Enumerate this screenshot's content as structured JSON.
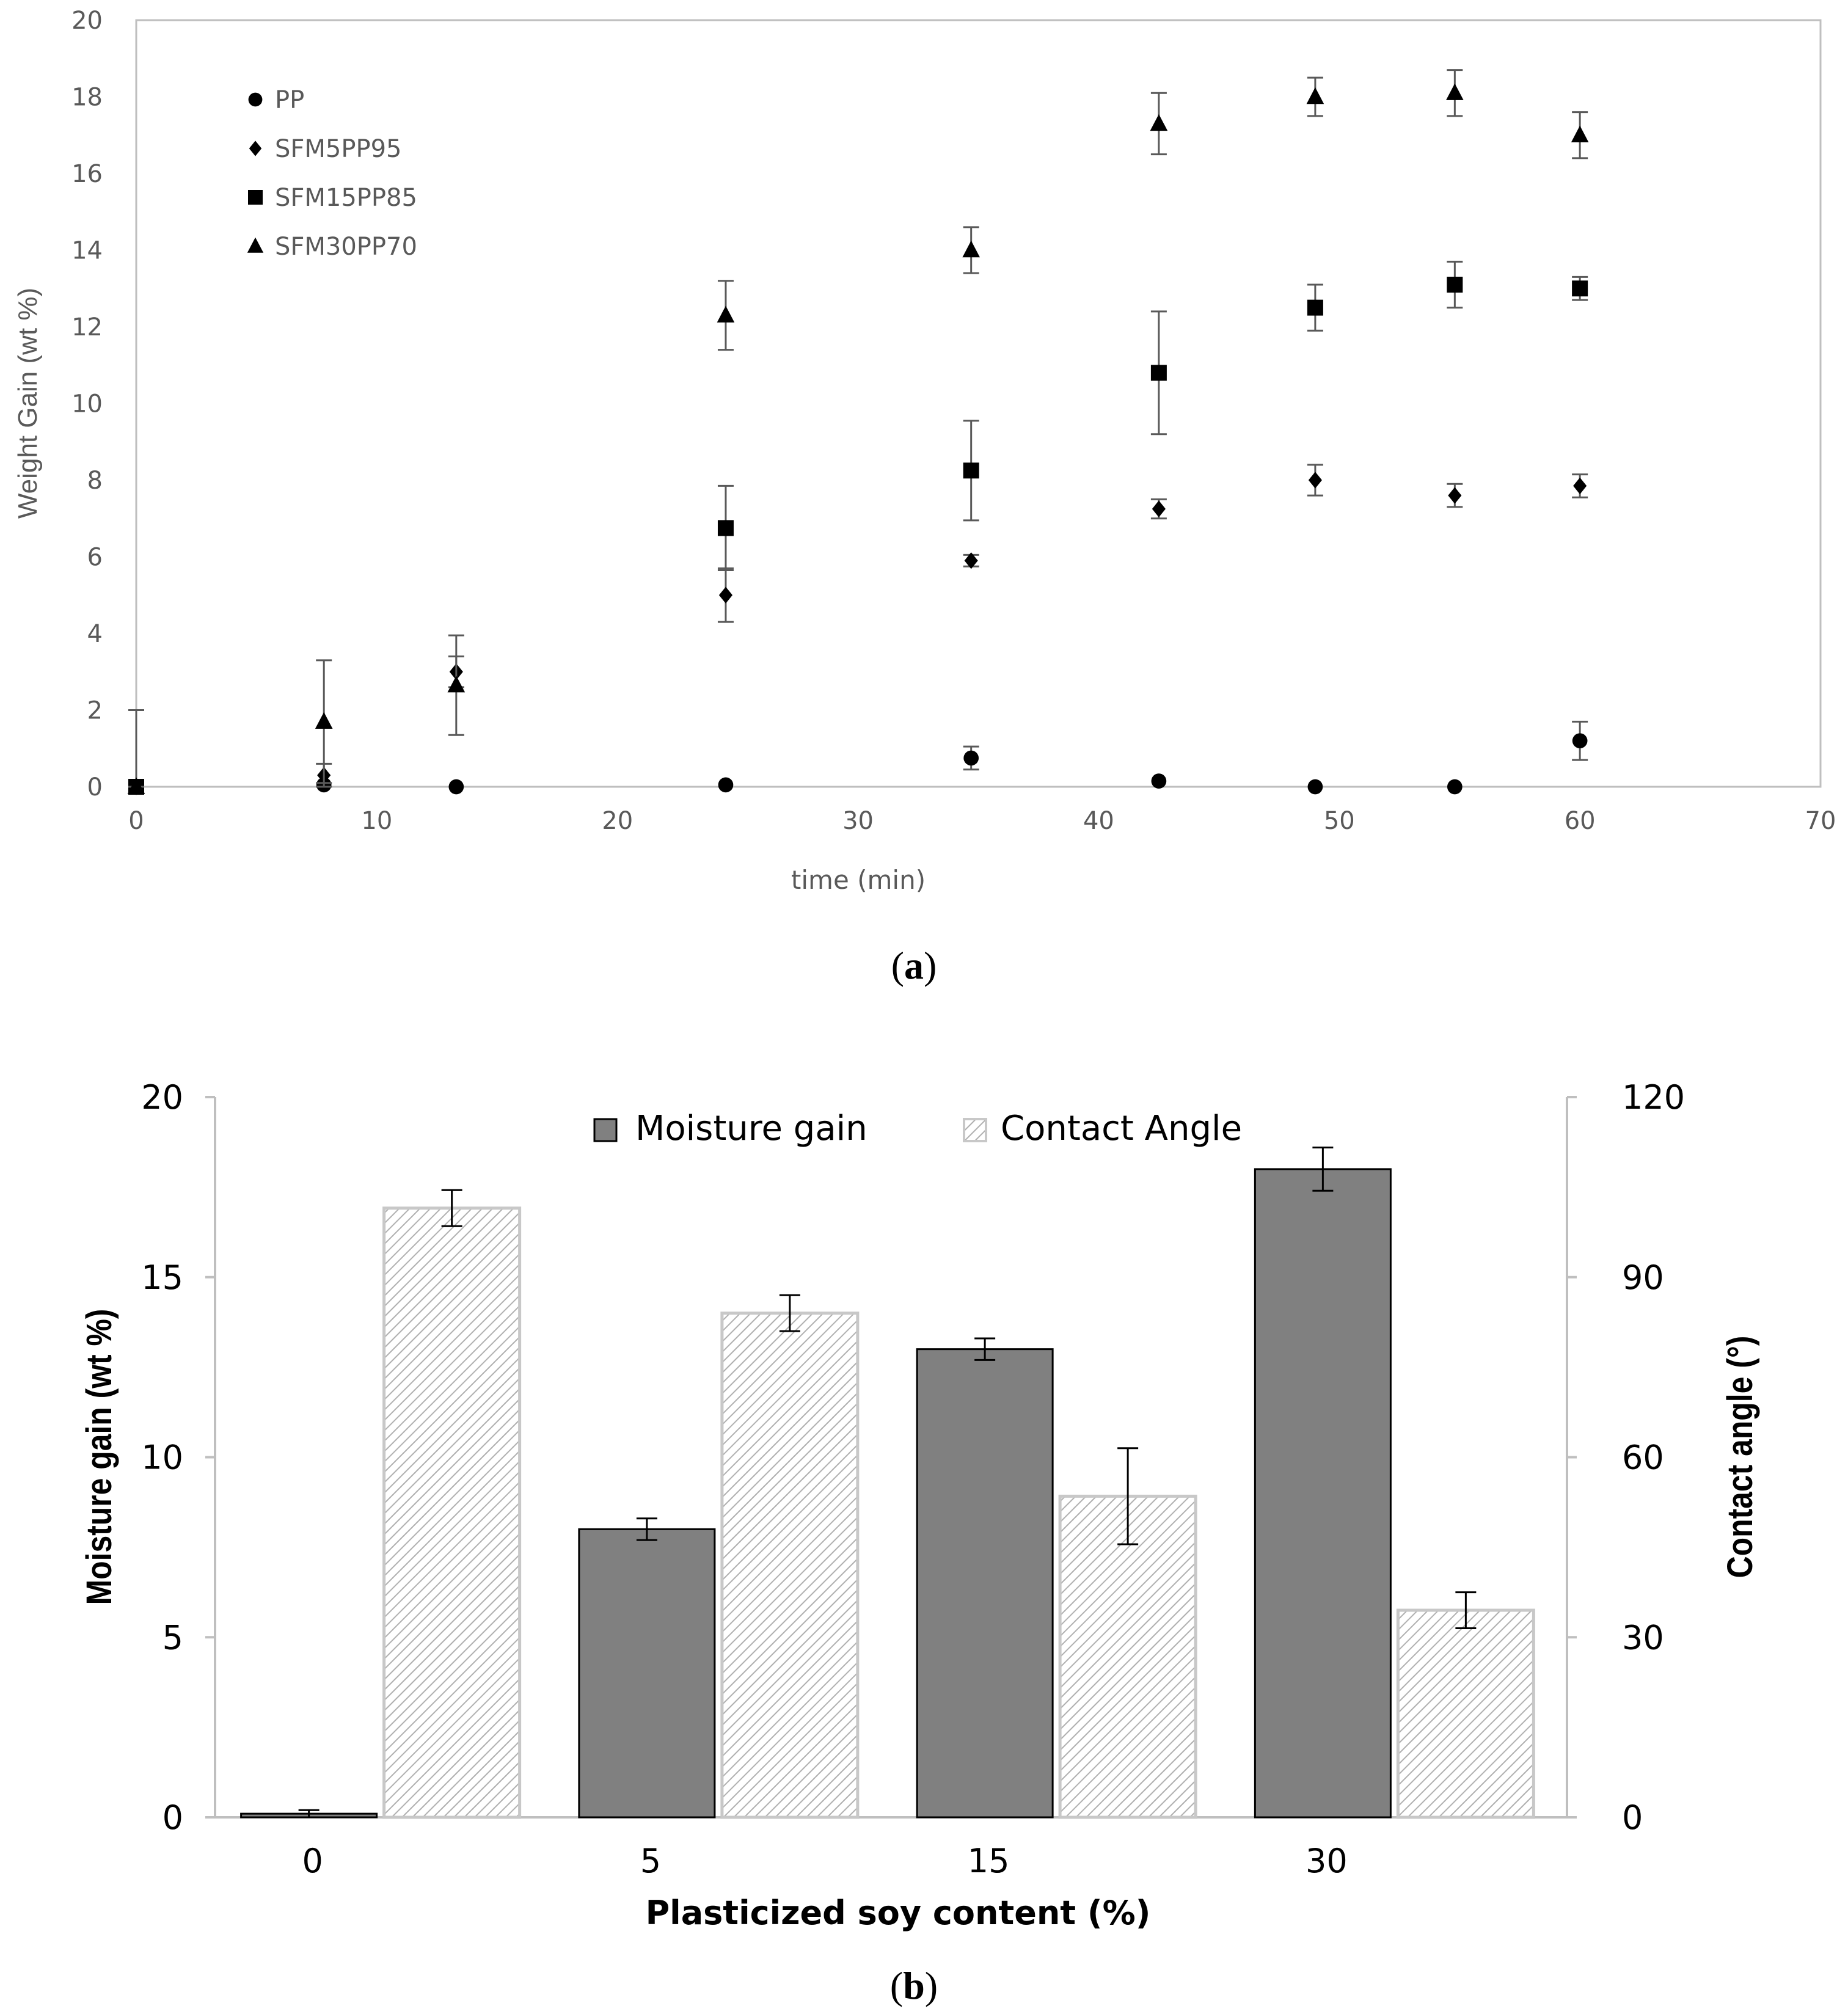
{
  "chart_data": [
    {
      "type": "scatter",
      "panel_label": "a",
      "title": "",
      "xlabel": "time (min)",
      "ylabel": "Weight Gain (wt %)",
      "xlim": [
        0,
        70
      ],
      "ylim": [
        0,
        20
      ],
      "xticks": [
        0,
        10,
        20,
        30,
        40,
        50,
        60,
        70
      ],
      "yticks": [
        0,
        2,
        4,
        6,
        8,
        10,
        12,
        14,
        16,
        18,
        20
      ],
      "legend": "top-left",
      "series": [
        {
          "name": "PP",
          "marker": "circle",
          "x": [
            0,
            7.8,
            13.3,
            24.5,
            34.7,
            42.5,
            49,
            54.8,
            60
          ],
          "y": [
            0,
            0.05,
            0,
            0.05,
            0.75,
            0.15,
            0,
            0,
            1.2
          ],
          "err": [
            0,
            0,
            0,
            0,
            0.3,
            0,
            0,
            0,
            0.5
          ]
        },
        {
          "name": "SFM5PP95",
          "marker": "diamond",
          "x": [
            0,
            7.8,
            13.3,
            24.5,
            34.7,
            42.5,
            49,
            54.8,
            60
          ],
          "y": [
            0,
            0.3,
            3.0,
            5.0,
            5.9,
            7.25,
            8.0,
            7.6,
            7.85
          ],
          "err": [
            0,
            0.3,
            0.4,
            0.7,
            0.15,
            0.25,
            0.4,
            0.3,
            0.3
          ]
        },
        {
          "name": "SFM15PP85",
          "marker": "square",
          "x": [
            0,
            24.5,
            34.7,
            42.5,
            49,
            54.8,
            60
          ],
          "y": [
            0,
            6.75,
            8.25,
            10.8,
            12.5,
            13.1,
            13.0
          ],
          "err": [
            0,
            1.1,
            1.3,
            1.6,
            0.6,
            0.6,
            0.3
          ]
        },
        {
          "name": "SFM30PP70",
          "marker": "triangle",
          "x": [
            0,
            7.8,
            13.3,
            24.5,
            34.7,
            42.5,
            49,
            54.8,
            60
          ],
          "y": [
            0,
            1.7,
            2.65,
            12.3,
            14.0,
            17.3,
            18.0,
            18.1,
            17.0
          ],
          "err": [
            2.0,
            1.6,
            1.3,
            0.9,
            0.6,
            0.8,
            0.5,
            0.6,
            0.6
          ]
        }
      ]
    },
    {
      "type": "bar",
      "panel_label": "b",
      "title": "",
      "xlabel": "Plasticized soy content (%)",
      "ylabel": "Moisture gain (wt %)",
      "y2label": "Contact angle   (°)",
      "categories": [
        "0",
        "5",
        "15",
        "30"
      ],
      "ylim": [
        0,
        20
      ],
      "y2lim": [
        0,
        120
      ],
      "yticks": [
        0,
        5,
        10,
        15,
        20
      ],
      "y2ticks": [
        0,
        30,
        60,
        90,
        120
      ],
      "legend": "top-center",
      "series": [
        {
          "name": "Moisture gain",
          "axis": "left",
          "fill": "#808080",
          "values": [
            0.1,
            8.0,
            13.0,
            18.0
          ],
          "err": [
            0.1,
            0.3,
            0.3,
            0.6
          ]
        },
        {
          "name": "Contact Angle",
          "axis": "right",
          "fill": "hatch",
          "values": [
            101.5,
            84.0,
            53.5,
            34.5
          ],
          "err": [
            3,
            3,
            8,
            3
          ]
        }
      ]
    }
  ],
  "colors": {
    "ink": "#000000",
    "axis_gray": "#bfbfbf",
    "tick_text": "#595959",
    "bar_dark": "#808080",
    "hatch_line": "#b0b0b0"
  }
}
